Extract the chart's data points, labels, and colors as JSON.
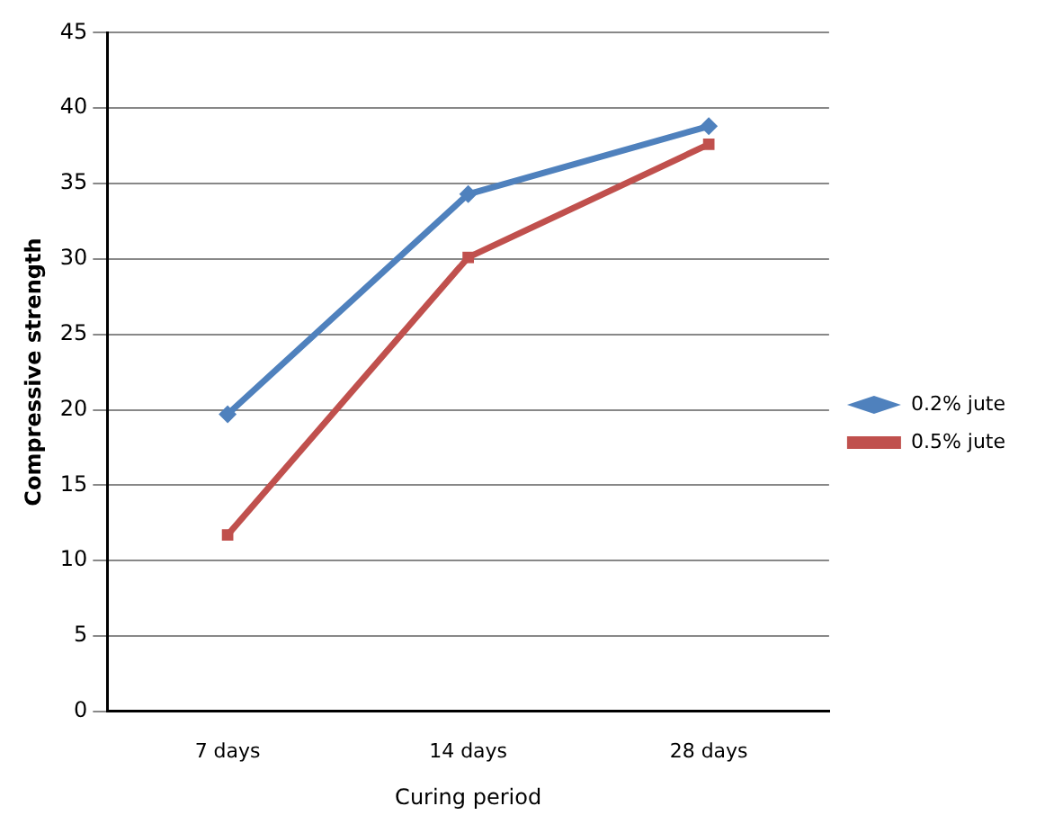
{
  "chart_data": {
    "type": "line",
    "xlabel": "Curing period",
    "ylabel": "Compressive strength",
    "categories": [
      "7 days",
      "14 days",
      "28 days"
    ],
    "series": [
      {
        "name": "0.2% jute",
        "color": "#4f81bd",
        "marker": "diamond",
        "values": [
          19.7,
          34.3,
          38.8
        ]
      },
      {
        "name": "0.5% jute",
        "color": "#c0504d",
        "marker": "square",
        "values": [
          11.7,
          30.1,
          37.6
        ]
      }
    ],
    "ylim": [
      0,
      45
    ],
    "yticks": [
      0,
      5,
      10,
      15,
      20,
      25,
      30,
      35,
      40,
      45
    ],
    "grid": "y",
    "legend": "right"
  }
}
